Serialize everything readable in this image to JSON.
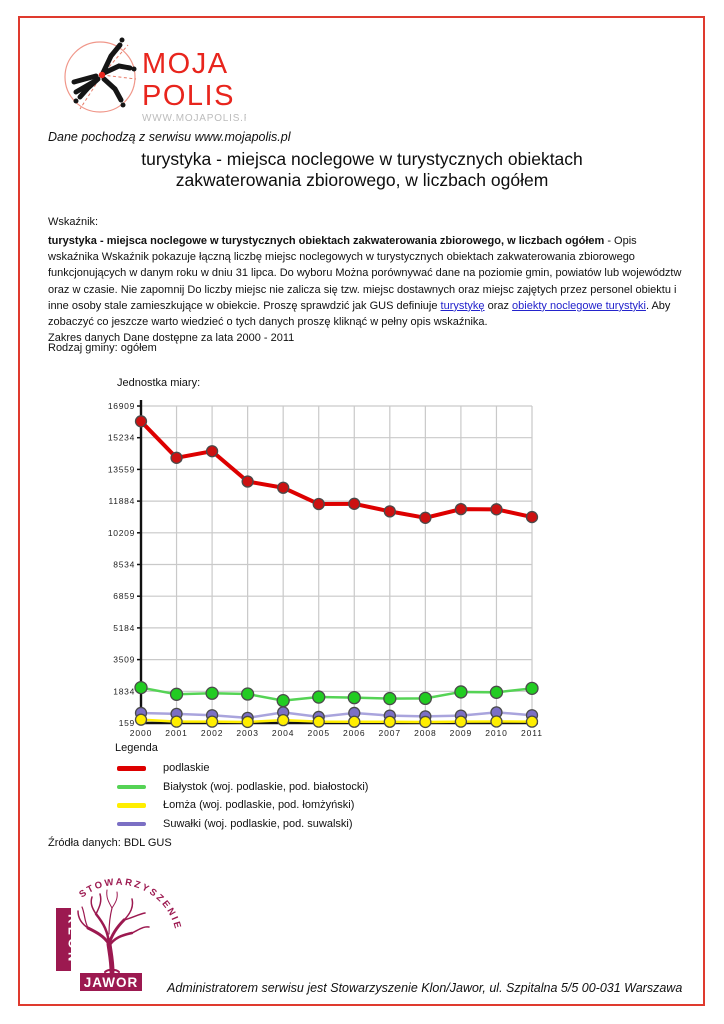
{
  "logo": {
    "name_line1": "MOJA",
    "name_line2": "POLIS",
    "url": "WWW.MOJAPOLIS.PL",
    "icon": "crossroads-logo-icon",
    "brand_color": "#e8251d"
  },
  "header": {
    "source_note": "Dane pochodzą z serwisu www.mojapolis.pl",
    "title_line1": "turystyka - miejsca noclegowe w turystycznych obiektach",
    "title_line2": "zakwaterowania zbiorowego, w liczbach ogółem"
  },
  "indicator": {
    "label": "Wskaźnik:",
    "bold_intro": "turystyka - miejsca noclegowe w turystycznych obiektach zakwaterowania zbiorowego, w liczbach ogółem",
    "desc_part1": " - Opis wskaźnika Wskaźnik pokazuje łączną liczbę miejsc noclegowych w turystycznych obiektach zakwaterowania zbiorowego funkcjonujących w danym roku w dniu 31 lipca. Do wyboru Można porównywać dane na poziomie gmin, powiatów lub województw oraz w czasie. Nie zapomnij Do liczby miejsc nie zalicza się tzw. miejsc dostawnych oraz miejsc zajętych przez personel obiektu i inne osoby stale zamieszkujące w obiekcie. Proszę sprawdzić jak GUS definiuje ",
    "link1": "turystykę",
    "between_links": " oraz ",
    "link2": "obiekty noclegowe turystyki",
    "desc_part2": ". Aby zobaczyć co jeszcze warto wiedzieć o tych danych proszę kliknąć w pełny opis wskaźnika.",
    "range_line": "Zakres danych Dane dostępne za lata  2000 - 2011"
  },
  "gmina_line": "Rodzaj gminy: ogółem",
  "chart_data": {
    "type": "line",
    "unit_label": "Jednostka miary:",
    "x": [
      2000,
      2001,
      2002,
      2003,
      2004,
      2005,
      2006,
      2007,
      2008,
      2009,
      2010,
      2011
    ],
    "series": [
      {
        "name": "podlaskie",
        "color": "#dd0000",
        "marker_fill": "#cc1111",
        "line_width": 4,
        "marker_r": 5.5,
        "values": [
          16100,
          14170,
          14520,
          12920,
          12590,
          11730,
          11740,
          11340,
          11000,
          11460,
          11450,
          11040
        ]
      },
      {
        "name": "Białystok (woj. podlaskie, pod. białostocki)",
        "color": "#55d355",
        "marker_fill": "#22cc22",
        "line_width": 2.5,
        "marker_r": 6,
        "values": [
          2030,
          1675,
          1730,
          1690,
          1340,
          1530,
          1500,
          1450,
          1460,
          1800,
          1780,
          1990
        ]
      },
      {
        "name": "Łomża (woj. podlaskie, pod. łomżyński)",
        "color": "#ffee00",
        "marker_fill": "#ffee00",
        "line_width": 2.5,
        "marker_r": 5.5,
        "values": [
          335,
          230,
          230,
          215,
          310,
          230,
          225,
          225,
          215,
          230,
          240,
          230
        ]
      },
      {
        "name": "Suwałki (woj. podlaskie, pod. suwalski)",
        "color": "#a9a4dd",
        "marker_fill": "#7b6fc4",
        "line_width": 2.5,
        "marker_r": 5.5,
        "values": [
          690,
          640,
          570,
          430,
          720,
          480,
          690,
          550,
          510,
          550,
          720,
          570
        ]
      }
    ],
    "y_ticks": [
      159,
      1834,
      3509,
      5184,
      6859,
      8534,
      10209,
      11884,
      13559,
      15234,
      16909
    ],
    "ylim": [
      159,
      16909
    ],
    "grid": true,
    "gridline_color": "#c9c9c9",
    "legend_position": "below-left"
  },
  "legend": {
    "title": "Legenda"
  },
  "sources_line": "Źródła danych: BDL GUS",
  "klon_logo": {
    "icon": "tree-logo-icon",
    "arc_text": "STOWARZYSZENIE",
    "box1": "KLON",
    "box2": "JAWOR",
    "brand_color": "#9c1950"
  },
  "footer": "Administratorem serwisu jest Stowarzyszenie Klon/Jawor, ul. Szpitalna 5/5 00-031 Warszawa"
}
